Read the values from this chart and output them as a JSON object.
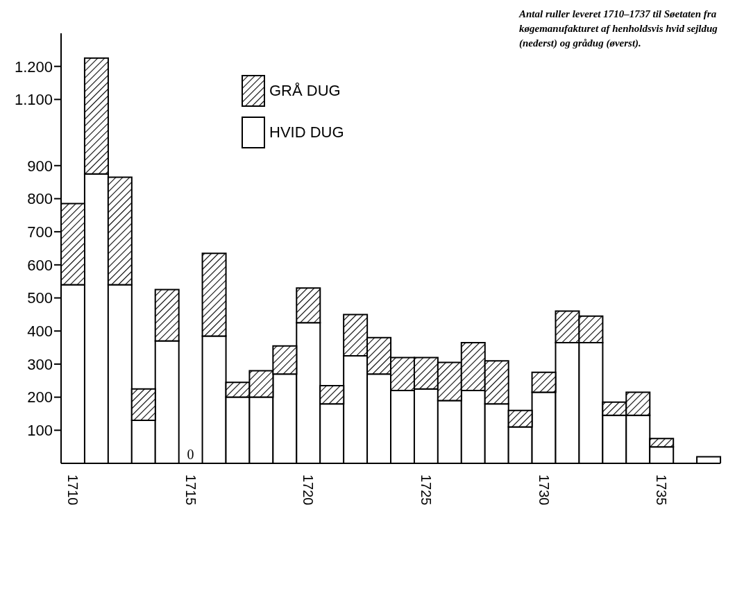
{
  "chart_data": {
    "type": "bar",
    "stacked": true,
    "title": "Antal ruller leveret 1710–1737 til Søetaten fra køgemanufakturet af henholdsvis hvid sejldug (nederst) og grådug (øverst).",
    "categories": [
      "1710",
      null,
      null,
      null,
      null,
      "1715",
      null,
      null,
      null,
      null,
      "1720",
      null,
      null,
      null,
      null,
      "1725",
      null,
      null,
      null,
      null,
      "1730",
      null,
      null,
      null,
      null,
      "1735",
      null,
      null
    ],
    "series": [
      {
        "name": "HVID DUG",
        "color": "#ffffff",
        "values": [
          540,
          875,
          540,
          130,
          370,
          0,
          385,
          200,
          200,
          270,
          425,
          180,
          325,
          270,
          220,
          225,
          190,
          220,
          180,
          110,
          215,
          365,
          365,
          145,
          145,
          50,
          null,
          20
        ]
      },
      {
        "name": "GRÅ DUG",
        "color": "#000000",
        "values": [
          245,
          350,
          325,
          95,
          155,
          0,
          250,
          45,
          80,
          85,
          105,
          55,
          125,
          110,
          100,
          95,
          115,
          145,
          130,
          50,
          60,
          95,
          80,
          40,
          70,
          25,
          null,
          0
        ]
      }
    ],
    "ylim": [
      0,
      1300
    ],
    "yticks": [
      100,
      200,
      300,
      400,
      500,
      600,
      700,
      800,
      900,
      {
        "value": 1100,
        "label": "1.100"
      },
      {
        "value": 1200,
        "label": "1.200"
      }
    ],
    "legend": "top",
    "annotations": [
      {
        "text": "0",
        "x": "1715",
        "y": 0
      }
    ]
  }
}
